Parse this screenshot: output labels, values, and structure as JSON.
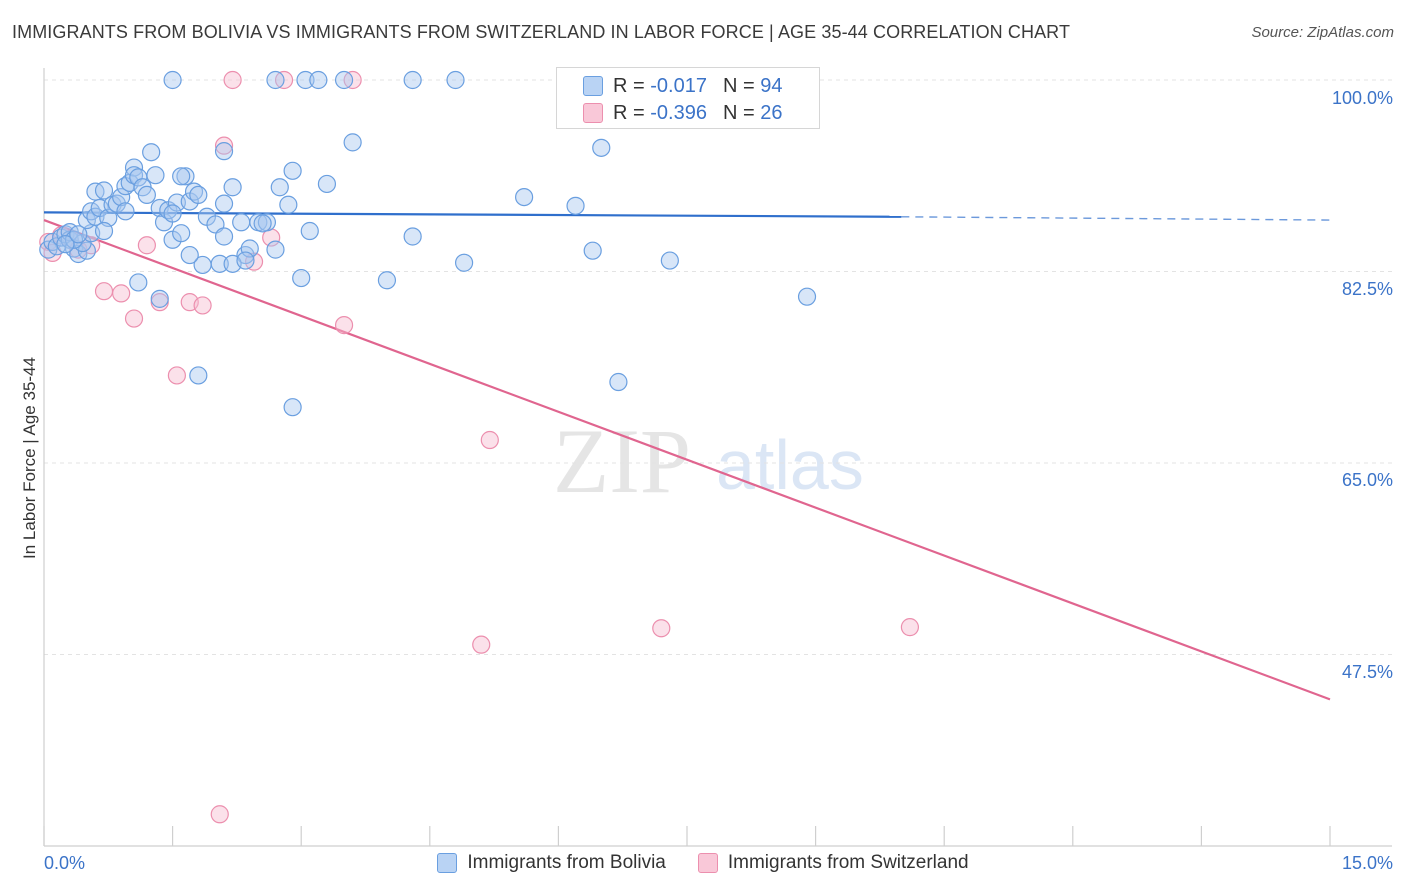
{
  "header": {
    "title": "IMMIGRANTS FROM BOLIVIA VS IMMIGRANTS FROM SWITZERLAND IN LABOR FORCE | AGE 35-44 CORRELATION CHART",
    "source": "Source: ZipAtlas.com"
  },
  "watermark": {
    "part1": "ZIP",
    "part2": "atlas"
  },
  "colors": {
    "bolivia_fill": "#a9c8f0",
    "bolivia_stroke": "#6a9fe0",
    "bolivia_line": "#2f6fcc",
    "switzerland_fill": "#f7bcd0",
    "switzerland_stroke": "#ec8fae",
    "switzerland_line": "#e0658f",
    "tick_label": "#3b73c8"
  },
  "correlation_box": {
    "rows": [
      {
        "r_label": "R =",
        "r_value": "-0.017",
        "n_label": "N =",
        "n_value": "94"
      },
      {
        "r_label": "R =",
        "r_value": "-0.396",
        "n_label": "N =",
        "n_value": "26"
      }
    ]
  },
  "chart_data": {
    "type": "scatter",
    "title": "IMMIGRANTS FROM BOLIVIA VS IMMIGRANTS FROM SWITZERLAND IN LABOR FORCE | AGE 35-44 CORRELATION CHART",
    "xlabel": "",
    "ylabel": "In Labor Force | Age 35-44",
    "xlim": [
      0,
      15
    ],
    "ylim": [
      30,
      101.5
    ],
    "x_tick_labels": [
      "0.0%",
      "15.0%"
    ],
    "y_ticks": [
      47.5,
      65.0,
      82.5,
      100.0
    ],
    "y_tick_labels": [
      "47.5%",
      "65.0%",
      "82.5%",
      "100.0%"
    ],
    "grid": true,
    "legend_position": "bottom",
    "series": [
      {
        "name": "Immigrants from Bolivia",
        "r": -0.017,
        "n": 94,
        "trend": {
          "x": [
            0,
            10
          ],
          "y": [
            87.9,
            87.5
          ],
          "dashed_to": [
            15,
            87.2
          ]
        },
        "points": [
          [
            0.05,
            84.5
          ],
          [
            0.1,
            85.2
          ],
          [
            0.15,
            84.8
          ],
          [
            0.2,
            85.6
          ],
          [
            0.25,
            85.9
          ],
          [
            0.3,
            85.4
          ],
          [
            0.35,
            84.6
          ],
          [
            0.4,
            84.1
          ],
          [
            0.5,
            84.4
          ],
          [
            0.3,
            86.1
          ],
          [
            0.45,
            85.1
          ],
          [
            0.35,
            85.4
          ],
          [
            0.55,
            86.0
          ],
          [
            0.5,
            87.2
          ],
          [
            0.55,
            88.0
          ],
          [
            0.6,
            87.5
          ],
          [
            0.6,
            89.8
          ],
          [
            0.65,
            88.3
          ],
          [
            0.7,
            89.9
          ],
          [
            0.75,
            87.4
          ],
          [
            0.8,
            88.6
          ],
          [
            0.85,
            88.7
          ],
          [
            0.9,
            89.3
          ],
          [
            0.95,
            90.3
          ],
          [
            1.0,
            90.6
          ],
          [
            1.05,
            92.0
          ],
          [
            1.05,
            91.3
          ],
          [
            1.1,
            91.1
          ],
          [
            1.15,
            90.2
          ],
          [
            1.2,
            89.5
          ],
          [
            1.25,
            93.4
          ],
          [
            1.3,
            91.3
          ],
          [
            1.35,
            88.3
          ],
          [
            1.4,
            87.0
          ],
          [
            1.45,
            88.1
          ],
          [
            1.5,
            85.4
          ],
          [
            1.55,
            88.8
          ],
          [
            1.6,
            86.0
          ],
          [
            1.65,
            91.2
          ],
          [
            1.7,
            88.9
          ],
          [
            1.75,
            89.8
          ],
          [
            1.8,
            89.5
          ],
          [
            1.9,
            87.5
          ],
          [
            2.0,
            86.8
          ],
          [
            2.1,
            85.7
          ],
          [
            2.1,
            88.7
          ],
          [
            2.2,
            90.2
          ],
          [
            2.3,
            87.0
          ],
          [
            2.35,
            84.0
          ],
          [
            2.4,
            84.6
          ],
          [
            2.5,
            87.0
          ],
          [
            2.6,
            87.0
          ],
          [
            2.7,
            84.5
          ],
          [
            2.75,
            90.2
          ],
          [
            2.85,
            88.6
          ],
          [
            2.9,
            91.7
          ],
          [
            3.1,
            86.2
          ],
          [
            3.3,
            90.5
          ],
          [
            3.6,
            94.3
          ],
          [
            4.0,
            81.7
          ],
          [
            4.3,
            85.7
          ],
          [
            4.9,
            83.3
          ],
          [
            5.6,
            89.3
          ],
          [
            6.2,
            88.5
          ],
          [
            6.4,
            84.4
          ],
          [
            6.5,
            93.8
          ],
          [
            6.7,
            72.4
          ],
          [
            7.3,
            83.5
          ],
          [
            8.9,
            80.2
          ],
          [
            1.8,
            73.0
          ],
          [
            2.9,
            70.1
          ],
          [
            1.35,
            80.0
          ],
          [
            1.5,
            100.0
          ],
          [
            2.7,
            100.0
          ],
          [
            3.05,
            100.0
          ],
          [
            3.2,
            100.0
          ],
          [
            3.5,
            100.0
          ],
          [
            4.3,
            100.0
          ],
          [
            4.8,
            100.0
          ],
          [
            1.85,
            83.1
          ],
          [
            2.05,
            83.2
          ],
          [
            2.2,
            83.2
          ],
          [
            2.35,
            83.5
          ],
          [
            1.1,
            81.5
          ],
          [
            3.0,
            81.9
          ],
          [
            2.1,
            93.5
          ],
          [
            1.5,
            87.8
          ],
          [
            0.95,
            88.0
          ],
          [
            1.7,
            84.0
          ],
          [
            0.25,
            85.0
          ],
          [
            0.7,
            86.2
          ],
          [
            1.6,
            91.2
          ],
          [
            2.55,
            86.9
          ],
          [
            0.4,
            85.9
          ]
        ]
      },
      {
        "name": "Immigrants from Switzerland",
        "r": -0.396,
        "n": 26,
        "trend": {
          "x": [
            0,
            15
          ],
          "y": [
            87.2,
            43.4
          ]
        },
        "points": [
          [
            0.05,
            85.2
          ],
          [
            0.1,
            84.2
          ],
          [
            0.2,
            85.8
          ],
          [
            0.3,
            85.4
          ],
          [
            0.4,
            84.5
          ],
          [
            0.55,
            84.9
          ],
          [
            0.7,
            80.7
          ],
          [
            0.9,
            80.5
          ],
          [
            1.05,
            78.2
          ],
          [
            1.2,
            84.9
          ],
          [
            1.35,
            79.7
          ],
          [
            1.55,
            73.0
          ],
          [
            1.7,
            79.7
          ],
          [
            1.85,
            79.4
          ],
          [
            2.1,
            94.0
          ],
          [
            2.45,
            83.4
          ],
          [
            2.65,
            85.6
          ],
          [
            3.5,
            77.6
          ],
          [
            5.2,
            67.1
          ],
          [
            5.1,
            48.4
          ],
          [
            7.2,
            49.9
          ],
          [
            10.1,
            50.0
          ],
          [
            2.05,
            32.9
          ],
          [
            2.2,
            100.0
          ],
          [
            2.8,
            100.0
          ],
          [
            3.6,
            100.0
          ]
        ]
      }
    ]
  }
}
